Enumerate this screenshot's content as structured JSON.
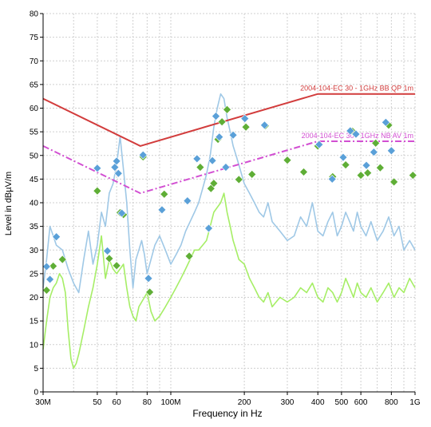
{
  "chart_data": {
    "type": "line",
    "xlabel": "Frequency in Hz",
    "ylabel": "Level in dBµV/m",
    "x_scale": "log",
    "xlim": [
      30,
      1000
    ],
    "ylim": [
      0,
      80
    ],
    "grid": true,
    "x_ticks": [
      {
        "value": 30,
        "label": "30M"
      },
      {
        "value": 50,
        "label": "50"
      },
      {
        "value": 60,
        "label": "60"
      },
      {
        "value": 80,
        "label": "80"
      },
      {
        "value": 100,
        "label": "100M"
      },
      {
        "value": 200,
        "label": "200"
      },
      {
        "value": 300,
        "label": "300"
      },
      {
        "value": 400,
        "label": "400"
      },
      {
        "value": 500,
        "label": "500"
      },
      {
        "value": 600,
        "label": "600"
      },
      {
        "value": 800,
        "label": "800"
      },
      {
        "value": 1000,
        "label": "1G"
      }
    ],
    "y_ticks": [
      0,
      5,
      10,
      15,
      20,
      25,
      30,
      35,
      40,
      45,
      50,
      55,
      60,
      65,
      70,
      75,
      80
    ],
    "limit_lines": [
      {
        "name": "2004-104-EC 30 - 1GHz BB QP 1m",
        "color": "#d23c3c",
        "style": "solid",
        "x": [
          30,
          75,
          400,
          1000
        ],
        "y": [
          62,
          52,
          63,
          63
        ]
      },
      {
        "name": "2004-104-EC 30 - 1GHz NB AV 1m",
        "color": "#d24fd2",
        "style": "dashdot",
        "x": [
          30,
          75,
          400,
          1000
        ],
        "y": [
          52,
          42,
          53,
          53
        ]
      }
    ],
    "series": [
      {
        "color": "#9fc8e6",
        "x": [
          30,
          31,
          32,
          33,
          34,
          36,
          38,
          40,
          42,
          44,
          46,
          48,
          50,
          52,
          54,
          56,
          58,
          60,
          62,
          64,
          66,
          68,
          70,
          72,
          74,
          76,
          78,
          80,
          83,
          86,
          90,
          95,
          100,
          105,
          110,
          115,
          120,
          125,
          130,
          135,
          140,
          145,
          150,
          155,
          160,
          165,
          170,
          175,
          180,
          185,
          190,
          200,
          210,
          220,
          230,
          240,
          250,
          260,
          280,
          300,
          320,
          340,
          360,
          380,
          400,
          420,
          440,
          460,
          480,
          500,
          520,
          540,
          560,
          580,
          600,
          630,
          660,
          700,
          740,
          780,
          820,
          860,
          900,
          950,
          1000
        ],
        "y": [
          22,
          28,
          35,
          33,
          31,
          30,
          26,
          23,
          21,
          28,
          34,
          27,
          31,
          38,
          35,
          42,
          44,
          48,
          54,
          47,
          40,
          30,
          22,
          28,
          30,
          32,
          29,
          25,
          28,
          31,
          33,
          30,
          27,
          29,
          31,
          34,
          36,
          38,
          40,
          43,
          46,
          50,
          56,
          60,
          63,
          62,
          58,
          55,
          52,
          50,
          48,
          44,
          42,
          40,
          38,
          37,
          40,
          36,
          34,
          32,
          33,
          37,
          35,
          40,
          34,
          33,
          36,
          38,
          33,
          35,
          38,
          36,
          34,
          38,
          35,
          33,
          36,
          32,
          34,
          37,
          33,
          35,
          30,
          32,
          30
        ]
      },
      {
        "color": "#a6ee66",
        "x": [
          30,
          31,
          32,
          33,
          34,
          35,
          36,
          37,
          38,
          39,
          40,
          41,
          42,
          44,
          46,
          48,
          50,
          52,
          54,
          56,
          58,
          60,
          62,
          64,
          66,
          68,
          70,
          72,
          74,
          76,
          78,
          80,
          83,
          86,
          90,
          95,
          100,
          105,
          110,
          115,
          120,
          125,
          130,
          135,
          140,
          145,
          150,
          155,
          160,
          165,
          170,
          175,
          180,
          185,
          190,
          200,
          210,
          220,
          230,
          240,
          250,
          260,
          280,
          300,
          320,
          340,
          360,
          380,
          400,
          420,
          440,
          460,
          480,
          500,
          520,
          540,
          560,
          580,
          600,
          630,
          660,
          700,
          740,
          780,
          820,
          860,
          900,
          950,
          1000
        ],
        "y": [
          9,
          15,
          20,
          22,
          23,
          25,
          24,
          21,
          13,
          7,
          5,
          6,
          8,
          13,
          18,
          22,
          27,
          33,
          24,
          28,
          26,
          25,
          26,
          27,
          22,
          18,
          16,
          15,
          18,
          19,
          20,
          21,
          17,
          15,
          16,
          18,
          20,
          22,
          24,
          26,
          28,
          30,
          30,
          31,
          32,
          35,
          38,
          39,
          40,
          42,
          38,
          35,
          32,
          30,
          28,
          27,
          24,
          22,
          20,
          19,
          21,
          18,
          20,
          19,
          20,
          22,
          21,
          23,
          20,
          19,
          22,
          21,
          19,
          21,
          24,
          22,
          20,
          23,
          21,
          20,
          22,
          19,
          21,
          23,
          20,
          22,
          21,
          24,
          22
        ]
      }
    ],
    "qp_points": {
      "color": "#5aa0d8",
      "x": [
        31,
        32,
        34,
        50,
        55,
        59,
        60,
        61,
        63,
        77,
        81,
        92,
        117,
        128,
        143,
        148,
        153,
        158,
        168,
        180,
        201,
        242,
        405,
        458,
        508,
        543,
        573,
        632,
        678,
        759,
        800
      ],
      "y": [
        26.5,
        23.8,
        32.8,
        47.3,
        29.8,
        47.5,
        48.8,
        46.2,
        37.8,
        50.1,
        24.0,
        38.5,
        40.4,
        49.3,
        34.6,
        48.9,
        58.3,
        53.9,
        47.5,
        54.3,
        57.8,
        56.4,
        52.3,
        45.0,
        49.6,
        55.2,
        54.5,
        47.9,
        50.7,
        57.0,
        51.0
      ]
    },
    "av_points": {
      "color": "#5fae36",
      "x": [
        31,
        33,
        36,
        50,
        56,
        60,
        62,
        64,
        77,
        82,
        94,
        119,
        132,
        146,
        150,
        156,
        162,
        170,
        190,
        203,
        215,
        244,
        300,
        350,
        400,
        460,
        520,
        555,
        600,
        640,
        690,
        720,
        780,
        820,
        980
      ],
      "y": [
        21.5,
        26.6,
        28.0,
        42.5,
        28.2,
        26.7,
        37.9,
        37.5,
        49.7,
        21.1,
        41.8,
        28.7,
        47.5,
        43.0,
        44.1,
        53.4,
        57.1,
        59.7,
        44.9,
        56.0,
        46.0,
        56.3,
        49.0,
        46.5,
        52.0,
        45.5,
        48.0,
        55.1,
        45.8,
        46.3,
        52.6,
        47.4,
        56.4,
        44.4,
        45.8
      ]
    }
  }
}
